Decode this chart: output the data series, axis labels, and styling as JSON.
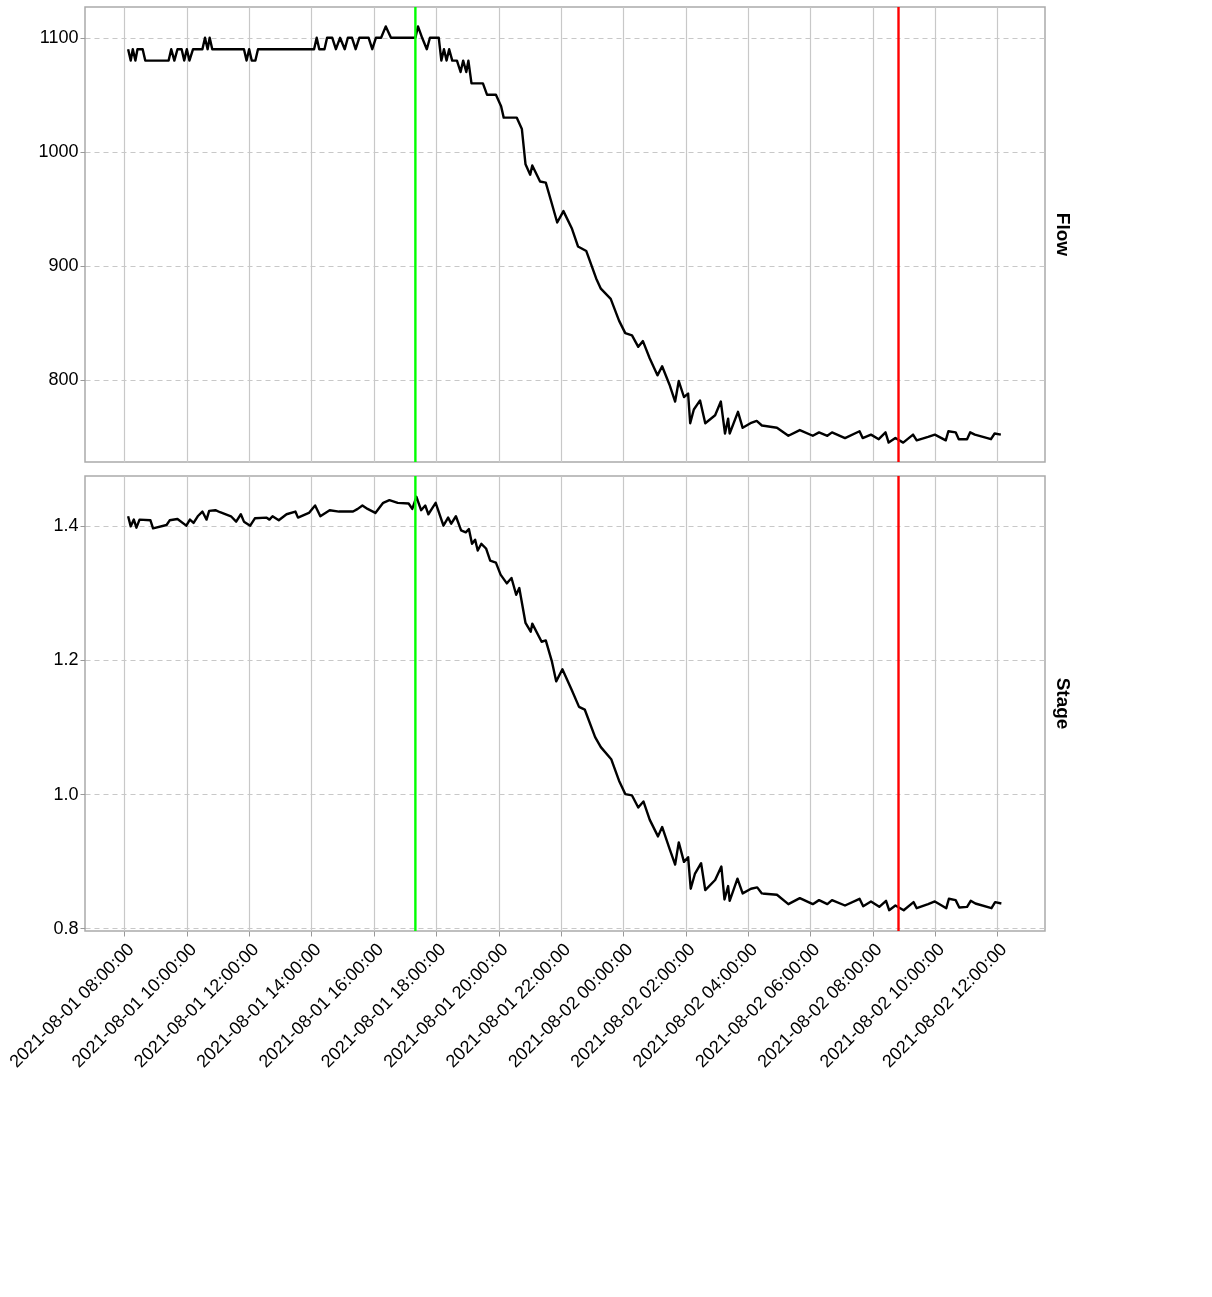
{
  "chart_data": [
    {
      "type": "line",
      "title": "Flow",
      "tick_labels": "y",
      "grid": true,
      "xlim": [
        "2021-08-01T06:44",
        "2021-08-02T13:32"
      ],
      "xticks": [
        {
          "value": "2021-08-01T08:00",
          "label": null
        },
        {
          "value": "2021-08-01T10:00",
          "label": null
        },
        {
          "value": "2021-08-01T12:00",
          "label": null
        },
        {
          "value": "2021-08-01T14:00",
          "label": null
        },
        {
          "value": "2021-08-01T16:00",
          "label": null
        },
        {
          "value": "2021-08-01T18:00",
          "label": null
        },
        {
          "value": "2021-08-01T20:00",
          "label": null
        },
        {
          "value": "2021-08-01T22:00",
          "label": null
        },
        {
          "value": "2021-08-02T00:00",
          "label": null
        },
        {
          "value": "2021-08-02T02:00",
          "label": null
        },
        {
          "value": "2021-08-02T04:00",
          "label": null
        },
        {
          "value": "2021-08-02T06:00",
          "label": null
        },
        {
          "value": "2021-08-02T08:00",
          "label": null
        },
        {
          "value": "2021-08-02T10:00",
          "label": null
        },
        {
          "value": "2021-08-02T12:00",
          "label": null
        }
      ],
      "ylim": [
        728,
        1127
      ],
      "yticks": [
        800,
        900,
        1000,
        1100
      ],
      "ref_lines": [
        {
          "axis": "x",
          "value": "2021-08-01T17:20",
          "color": "#00ff00"
        },
        {
          "axis": "x",
          "value": "2021-08-02T08:50",
          "color": "#ff0000"
        }
      ],
      "series": [
        {
          "color": "#000000",
          "x": [
            "2021-08-01T08:07",
            "2021-08-01T08:12",
            "2021-08-01T08:16",
            "2021-08-01T08:21",
            "2021-08-01T08:25",
            "2021-08-01T08:35",
            "2021-08-01T08:40",
            "2021-08-01T09:25",
            "2021-08-01T09:30",
            "2021-08-01T09:36",
            "2021-08-01T09:42",
            "2021-08-01T09:50",
            "2021-08-01T09:55",
            "2021-08-01T10:00",
            "2021-08-01T10:05",
            "2021-08-01T10:12",
            "2021-08-01T10:30",
            "2021-08-01T10:35",
            "2021-08-01T10:40",
            "2021-08-01T10:44",
            "2021-08-01T10:49",
            "2021-08-01T11:50",
            "2021-08-01T11:55",
            "2021-08-01T12:00",
            "2021-08-01T12:05",
            "2021-08-01T12:12",
            "2021-08-01T12:17",
            "2021-08-01T14:05",
            "2021-08-01T14:10",
            "2021-08-01T14:15",
            "2021-08-01T14:25",
            "2021-08-01T14:30",
            "2021-08-01T14:40",
            "2021-08-01T14:47",
            "2021-08-01T14:55",
            "2021-08-01T15:04",
            "2021-08-01T15:10",
            "2021-08-01T15:18",
            "2021-08-01T15:25",
            "2021-08-01T15:32",
            "2021-08-01T15:50",
            "2021-08-01T15:57",
            "2021-08-01T16:04",
            "2021-08-01T16:14",
            "2021-08-01T16:23",
            "2021-08-01T16:33",
            "2021-08-01T17:20",
            "2021-08-01T17:25",
            "2021-08-01T17:33",
            "2021-08-01T17:42",
            "2021-08-01T17:48",
            "2021-08-01T18:05",
            "2021-08-01T18:10",
            "2021-08-01T18:15",
            "2021-08-01T18:20",
            "2021-08-01T18:25",
            "2021-08-01T18:31",
            "2021-08-01T18:40",
            "2021-08-01T18:47",
            "2021-08-01T18:52",
            "2021-08-01T18:58",
            "2021-08-01T19:02",
            "2021-08-01T19:08",
            "2021-08-01T19:30",
            "2021-08-01T19:38",
            "2021-08-01T19:55",
            "2021-08-01T20:05",
            "2021-08-01T20:10",
            "2021-08-01T20:35",
            "2021-08-01T20:45",
            "2021-08-01T20:52",
            "2021-08-01T21:01",
            "2021-08-01T21:05",
            "2021-08-01T21:20",
            "2021-08-01T21:31",
            "2021-08-01T21:43",
            "2021-08-01T21:53",
            "2021-08-01T22:05",
            "2021-08-01T22:21",
            "2021-08-01T22:33",
            "2021-08-01T22:49",
            "2021-08-01T23:08",
            "2021-08-01T23:17",
            "2021-08-01T23:36",
            "2021-08-01T23:52",
            "2021-08-02T00:04",
            "2021-08-02T00:17",
            "2021-08-02T00:29",
            "2021-08-02T00:38",
            "2021-08-02T00:51",
            "2021-08-02T01:06",
            "2021-08-02T01:15",
            "2021-08-02T01:29",
            "2021-08-02T01:40",
            "2021-08-02T01:47",
            "2021-08-02T01:57",
            "2021-08-02T02:05",
            "2021-08-02T02:09",
            "2021-08-02T02:16",
            "2021-08-02T02:28",
            "2021-08-02T02:38",
            "2021-08-02T02:57",
            "2021-08-02T03:08",
            "2021-08-02T03:16",
            "2021-08-02T03:22",
            "2021-08-02T03:25",
            "2021-08-02T03:41",
            "2021-08-02T03:50",
            "2021-08-02T04:05",
            "2021-08-02T04:17",
            "2021-08-02T04:27",
            "2021-08-02T04:56",
            "2021-08-02T05:18",
            "2021-08-02T05:40",
            "2021-08-02T06:05",
            "2021-08-02T06:17",
            "2021-08-02T06:33",
            "2021-08-02T06:42",
            "2021-08-02T07:07",
            "2021-08-02T07:35",
            "2021-08-02T07:41",
            "2021-08-02T07:57",
            "2021-08-02T08:12",
            "2021-08-02T08:25",
            "2021-08-02T08:31",
            "2021-08-02T08:44",
            "2021-08-02T08:59",
            "2021-08-02T09:18",
            "2021-08-02T09:25",
            "2021-08-02T09:47",
            "2021-08-02T10:00",
            "2021-08-02T10:21",
            "2021-08-02T10:26",
            "2021-08-02T10:40",
            "2021-08-02T10:46",
            "2021-08-02T11:02",
            "2021-08-02T11:08",
            "2021-08-02T11:17",
            "2021-08-02T11:48",
            "2021-08-02T11:55",
            "2021-08-02T12:07"
          ],
          "values": [
            1090,
            1080,
            1090,
            1080,
            1090,
            1090,
            1080,
            1080,
            1090,
            1080,
            1090,
            1090,
            1080,
            1090,
            1080,
            1090,
            1090,
            1100,
            1090,
            1100,
            1090,
            1090,
            1080,
            1090,
            1080,
            1080,
            1090,
            1090,
            1100,
            1090,
            1090,
            1100,
            1100,
            1090,
            1100,
            1090,
            1100,
            1100,
            1090,
            1100,
            1100,
            1090,
            1100,
            1100,
            1110,
            1100,
            1100,
            1110,
            1100,
            1090,
            1100,
            1100,
            1080,
            1090,
            1080,
            1090,
            1080,
            1080,
            1070,
            1080,
            1070,
            1080,
            1060,
            1060,
            1050,
            1050,
            1040,
            1030,
            1030,
            1020,
            989,
            980,
            988,
            974,
            973,
            954,
            938,
            948,
            933,
            917,
            913,
            889,
            880,
            871,
            852,
            841,
            839,
            829,
            834,
            819,
            804,
            812,
            796,
            781,
            799,
            785,
            788,
            762,
            774,
            782,
            762,
            769,
            781,
            753,
            766,
            753,
            772,
            758,
            762,
            764,
            760,
            758,
            751,
            756,
            751,
            754,
            751,
            754,
            749,
            755,
            749,
            752,
            748,
            754,
            745,
            749,
            745,
            752,
            747,
            750,
            752,
            747,
            755,
            754,
            748,
            748,
            754,
            752,
            748,
            753,
            752
          ]
        }
      ]
    },
    {
      "type": "line",
      "title": "Stage",
      "grid": true,
      "xlim": [
        "2021-08-01T06:44",
        "2021-08-02T13:32"
      ],
      "xticks": [
        {
          "value": "2021-08-01T08:00",
          "label": "2021-08-01 08:00:00"
        },
        {
          "value": "2021-08-01T10:00",
          "label": "2021-08-01 10:00:00"
        },
        {
          "value": "2021-08-01T12:00",
          "label": "2021-08-01 12:00:00"
        },
        {
          "value": "2021-08-01T14:00",
          "label": "2021-08-01 14:00:00"
        },
        {
          "value": "2021-08-01T16:00",
          "label": "2021-08-01 16:00:00"
        },
        {
          "value": "2021-08-01T18:00",
          "label": "2021-08-01 18:00:00"
        },
        {
          "value": "2021-08-01T20:00",
          "label": "2021-08-01 20:00:00"
        },
        {
          "value": "2021-08-01T22:00",
          "label": "2021-08-01 22:00:00"
        },
        {
          "value": "2021-08-02T00:00",
          "label": "2021-08-02 00:00:00"
        },
        {
          "value": "2021-08-02T02:00",
          "label": "2021-08-02 02:00:00"
        },
        {
          "value": "2021-08-02T04:00",
          "label": "2021-08-02 04:00:00"
        },
        {
          "value": "2021-08-02T06:00",
          "label": "2021-08-02 06:00:00"
        },
        {
          "value": "2021-08-02T08:00",
          "label": "2021-08-02 08:00:00"
        },
        {
          "value": "2021-08-02T10:00",
          "label": "2021-08-02 10:00:00"
        },
        {
          "value": "2021-08-02T12:00",
          "label": "2021-08-02 12:00:00"
        }
      ],
      "ylim": [
        0.796,
        1.474
      ],
      "yticks": [
        {
          "value": 0.8,
          "label": "0.8"
        },
        {
          "value": 1.0,
          "label": "1.0"
        },
        {
          "value": 1.2,
          "label": "1.2"
        },
        {
          "value": 1.4,
          "label": "1.4"
        }
      ],
      "ref_lines": [
        {
          "axis": "x",
          "value": "2021-08-01T17:20",
          "color": "#00ff00"
        },
        {
          "axis": "x",
          "value": "2021-08-02T08:50",
          "color": "#ff0000"
        }
      ],
      "series": [
        {
          "color": "#000000",
          "x": [
            "2021-08-01T08:07",
            "2021-08-01T08:12",
            "2021-08-01T08:18",
            "2021-08-01T08:23",
            "2021-08-01T08:29",
            "2021-08-01T08:50",
            "2021-08-01T08:55",
            "2021-08-01T09:21",
            "2021-08-01T09:27",
            "2021-08-01T09:42",
            "2021-08-01T09:59",
            "2021-08-01T10:06",
            "2021-08-01T10:13",
            "2021-08-01T10:21",
            "2021-08-01T10:30",
            "2021-08-01T10:38",
            "2021-08-01T10:43",
            "2021-08-01T10:55",
            "2021-08-01T11:04",
            "2021-08-01T11:25",
            "2021-08-01T11:35",
            "2021-08-01T11:44",
            "2021-08-01T11:50",
            "2021-08-01T12:02",
            "2021-08-01T12:11",
            "2021-08-01T12:33",
            "2021-08-01T12:39",
            "2021-08-01T12:45",
            "2021-08-01T12:57",
            "2021-08-01T13:12",
            "2021-08-01T13:29",
            "2021-08-01T13:34",
            "2021-08-01T13:55",
            "2021-08-01T14:07",
            "2021-08-01T14:17",
            "2021-08-01T14:35",
            "2021-08-01T14:53",
            "2021-08-01T15:20",
            "2021-08-01T15:29",
            "2021-08-01T15:38",
            "2021-08-01T15:48",
            "2021-08-01T16:03",
            "2021-08-01T16:18",
            "2021-08-01T16:30",
            "2021-08-01T16:46",
            "2021-08-01T17:07",
            "2021-08-01T17:14",
            "2021-08-01T17:22",
            "2021-08-01T17:31",
            "2021-08-01T17:39",
            "2021-08-01T17:45",
            "2021-08-01T17:59",
            "2021-08-01T18:14",
            "2021-08-01T18:23",
            "2021-08-01T18:29",
            "2021-08-01T18:38",
            "2021-08-01T18:48",
            "2021-08-01T18:57",
            "2021-08-01T19:03",
            "2021-08-01T19:09",
            "2021-08-01T19:15",
            "2021-08-01T19:20",
            "2021-08-01T19:27",
            "2021-08-01T19:36",
            "2021-08-01T19:44",
            "2021-08-01T19:55",
            "2021-08-01T20:04",
            "2021-08-01T20:16",
            "2021-08-01T20:25",
            "2021-08-01T20:34",
            "2021-08-01T20:40",
            "2021-08-01T20:52",
            "2021-08-01T21:02",
            "2021-08-01T21:05",
            "2021-08-01T21:23",
            "2021-08-01T21:31",
            "2021-08-01T21:43",
            "2021-08-01T21:51",
            "2021-08-01T22:03",
            "2021-08-01T22:21",
            "2021-08-01T22:35",
            "2021-08-01T22:46",
            "2021-08-01T23:06",
            "2021-08-01T23:17",
            "2021-08-01T23:37",
            "2021-08-01T23:52",
            "2021-08-02T00:04",
            "2021-08-02T00:17",
            "2021-08-02T00:29",
            "2021-08-02T00:39",
            "2021-08-02T00:51",
            "2021-08-02T01:07",
            "2021-08-02T01:15",
            "2021-08-02T01:29",
            "2021-08-02T01:40",
            "2021-08-02T01:47",
            "2021-08-02T01:57",
            "2021-08-02T02:05",
            "2021-08-02T02:10",
            "2021-08-02T02:18",
            "2021-08-02T02:30",
            "2021-08-02T02:38",
            "2021-08-02T02:57",
            "2021-08-02T03:09",
            "2021-08-02T03:15",
            "2021-08-02T03:22",
            "2021-08-02T03:25",
            "2021-08-02T03:40",
            "2021-08-02T03:50",
            "2021-08-02T04:06",
            "2021-08-02T04:18",
            "2021-08-02T04:27",
            "2021-08-02T04:56",
            "2021-08-02T05:18",
            "2021-08-02T05:40",
            "2021-08-02T06:05",
            "2021-08-02T06:17",
            "2021-08-02T06:33",
            "2021-08-02T06:42",
            "2021-08-02T07:07",
            "2021-08-02T07:35",
            "2021-08-02T07:42",
            "2021-08-02T07:57",
            "2021-08-02T08:13",
            "2021-08-02T08:26",
            "2021-08-02T08:32",
            "2021-08-02T08:44",
            "2021-08-02T09:00",
            "2021-08-02T09:19",
            "2021-08-02T09:25",
            "2021-08-02T09:47",
            "2021-08-02T10:00",
            "2021-08-02T10:22",
            "2021-08-02T10:27",
            "2021-08-02T10:40",
            "2021-08-02T10:47",
            "2021-08-02T11:02",
            "2021-08-02T11:09",
            "2021-08-02T11:18",
            "2021-08-02T11:49",
            "2021-08-02T11:56",
            "2021-08-02T12:08"
          ],
          "values": [
            1.414,
            1.399,
            1.409,
            1.397,
            1.409,
            1.408,
            1.396,
            1.401,
            1.408,
            1.41,
            1.4,
            1.409,
            1.404,
            1.414,
            1.421,
            1.409,
            1.422,
            1.423,
            1.42,
            1.414,
            1.406,
            1.417,
            1.406,
            1.4,
            1.411,
            1.412,
            1.409,
            1.414,
            1.408,
            1.417,
            1.421,
            1.412,
            1.419,
            1.43,
            1.414,
            1.423,
            1.421,
            1.421,
            1.425,
            1.43,
            1.425,
            1.419,
            1.434,
            1.438,
            1.434,
            1.433,
            1.425,
            1.443,
            1.423,
            1.43,
            1.417,
            1.434,
            1.4,
            1.412,
            1.403,
            1.414,
            1.393,
            1.39,
            1.395,
            1.373,
            1.379,
            1.363,
            1.373,
            1.366,
            1.348,
            1.345,
            1.327,
            1.314,
            1.322,
            1.297,
            1.307,
            1.255,
            1.242,
            1.254,
            1.227,
            1.229,
            1.197,
            1.168,
            1.186,
            1.155,
            1.13,
            1.126,
            1.085,
            1.07,
            1.052,
            1.02,
            1.0,
            0.998,
            0.98,
            0.989,
            0.962,
            0.937,
            0.951,
            0.919,
            0.895,
            0.928,
            0.899,
            0.906,
            0.859,
            0.881,
            0.897,
            0.857,
            0.872,
            0.892,
            0.843,
            0.863,
            0.841,
            0.874,
            0.852,
            0.859,
            0.861,
            0.852,
            0.85,
            0.836,
            0.845,
            0.836,
            0.842,
            0.836,
            0.842,
            0.834,
            0.844,
            0.833,
            0.84,
            0.832,
            0.841,
            0.827,
            0.834,
            0.827,
            0.839,
            0.83,
            0.836,
            0.84,
            0.83,
            0.844,
            0.842,
            0.831,
            0.832,
            0.841,
            0.837,
            0.83,
            0.839,
            0.837
          ]
        }
      ]
    }
  ]
}
